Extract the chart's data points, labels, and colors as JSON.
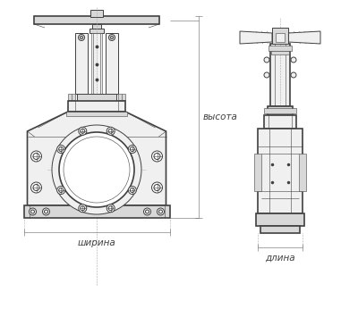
{
  "bg_color": "#ffffff",
  "lc": "#404040",
  "lc_dim": "#666666",
  "lc_dash": "#aaaaaa",
  "fc_light": "#f0f0f0",
  "fc_mid": "#d8d8d8",
  "fc_dark": "#b8b8b8",
  "label_shirina": "ширина",
  "label_dlina": "длина",
  "label_vysota": "высота",
  "fig_width": 4.0,
  "fig_height": 3.46,
  "dpi": 100
}
